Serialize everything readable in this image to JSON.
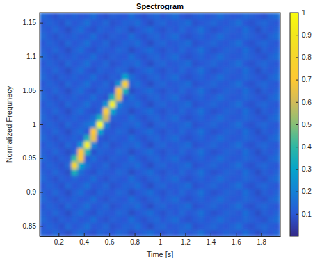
{
  "chart_data": {
    "type": "heatmap",
    "title": "Spectrogram",
    "x_label": "Time [s]",
    "y_label": "Normalized Frequnecy",
    "xlim": [
      0.05,
      1.95
    ],
    "ylim": [
      0.835,
      1.165
    ],
    "xticks": [
      0.2,
      0.4,
      0.6,
      0.8,
      1,
      1.2,
      1.4,
      1.6,
      1.8
    ],
    "yticks": [
      0.85,
      0.9,
      0.95,
      1,
      1.05,
      1.1,
      1.15
    ],
    "colorbar_range": [
      0,
      1
    ],
    "colorbar_ticks": [
      0.1,
      0.2,
      0.3,
      0.4,
      0.5,
      0.6,
      0.7,
      0.8,
      0.9,
      1
    ],
    "x": [
      0.075,
      0.125,
      0.175,
      0.225,
      0.275,
      0.325,
      0.375,
      0.425,
      0.475,
      0.525,
      0.575,
      0.625,
      0.675,
      0.725,
      0.775,
      0.825,
      0.875,
      0.925,
      0.975,
      1.025,
      1.075,
      1.125,
      1.175,
      1.225,
      1.275,
      1.325,
      1.375,
      1.425,
      1.475,
      1.525,
      1.575,
      1.625,
      1.675,
      1.725,
      1.775,
      1.825,
      1.875,
      1.925
    ],
    "y": [
      0.84,
      0.85,
      0.86,
      0.87,
      0.88,
      0.89,
      0.9,
      0.91,
      0.92,
      0.93,
      0.94,
      0.95,
      0.96,
      0.97,
      0.98,
      0.99,
      1,
      1.01,
      1.02,
      1.03,
      1.04,
      1.05,
      1.06,
      1.07,
      1.08,
      1.09,
      1.1,
      1.11,
      1.12,
      1.13,
      1.14,
      1.15,
      1.16
    ],
    "z": [
      [
        0.12,
        0.1,
        0.14,
        0.1,
        0.08,
        0.12,
        0.15,
        0.1,
        0.09,
        0.13,
        0.11,
        0.1,
        0.14,
        0.12,
        0.08,
        0.1,
        0.13,
        0.15,
        0.11,
        0.09,
        0.12,
        0.1,
        0.14,
        0.1,
        0.12,
        0.16,
        0.11,
        0.09,
        0.1,
        0.13,
        0.12,
        0.1,
        0.15,
        0.11,
        0.08,
        0.12,
        0.1,
        0.13
      ],
      [
        0.1,
        0.13,
        0.11,
        0.09,
        0.14,
        0.1,
        0.12,
        0.16,
        0.1,
        0.11,
        0.14,
        0.09,
        0.1,
        0.13,
        0.12,
        0.15,
        0.1,
        0.08,
        0.12,
        0.14,
        0.1,
        0.11,
        0.13,
        0.15,
        0.09,
        0.1,
        0.12,
        0.14,
        0.11,
        0.1,
        0.13,
        0.16,
        0.1,
        0.09,
        0.12,
        0.14,
        0.11,
        0.1
      ],
      [
        0.14,
        0.11,
        0.09,
        0.12,
        0.1,
        0.13,
        0.1,
        0.11,
        0.15,
        0.1,
        0.09,
        0.12,
        0.11,
        0.1,
        0.15,
        0.11,
        0.09,
        0.12,
        0.14,
        0.1,
        0.13,
        0.15,
        0.1,
        0.09,
        0.11,
        0.13,
        0.1,
        0.12,
        0.15,
        0.12,
        0.1,
        0.11,
        0.14,
        0.12,
        0.1,
        0.09,
        0.13,
        0.15
      ],
      [
        0.12,
        0.1,
        0.14,
        0.1,
        0.08,
        0.12,
        0.15,
        0.1,
        0.09,
        0.13,
        0.11,
        0.1,
        0.14,
        0.12,
        0.08,
        0.1,
        0.13,
        0.15,
        0.11,
        0.09,
        0.12,
        0.1,
        0.14,
        0.1,
        0.12,
        0.16,
        0.11,
        0.09,
        0.1,
        0.13,
        0.12,
        0.1,
        0.15,
        0.11,
        0.08,
        0.12,
        0.1,
        0.13
      ],
      [
        0.1,
        0.13,
        0.11,
        0.09,
        0.14,
        0.1,
        0.12,
        0.16,
        0.1,
        0.11,
        0.14,
        0.09,
        0.1,
        0.13,
        0.12,
        0.15,
        0.1,
        0.08,
        0.12,
        0.14,
        0.1,
        0.11,
        0.13,
        0.15,
        0.09,
        0.1,
        0.12,
        0.14,
        0.11,
        0.1,
        0.13,
        0.16,
        0.1,
        0.09,
        0.12,
        0.14,
        0.11,
        0.1
      ],
      [
        0.14,
        0.11,
        0.09,
        0.12,
        0.1,
        0.13,
        0.1,
        0.11,
        0.15,
        0.1,
        0.09,
        0.12,
        0.11,
        0.1,
        0.15,
        0.11,
        0.09,
        0.12,
        0.14,
        0.1,
        0.13,
        0.15,
        0.1,
        0.09,
        0.11,
        0.13,
        0.1,
        0.12,
        0.15,
        0.12,
        0.1,
        0.11,
        0.14,
        0.12,
        0.1,
        0.09,
        0.13,
        0.15
      ],
      [
        0.12,
        0.1,
        0.14,
        0.1,
        0.08,
        0.12,
        0.15,
        0.1,
        0.09,
        0.13,
        0.11,
        0.1,
        0.14,
        0.12,
        0.08,
        0.1,
        0.13,
        0.15,
        0.11,
        0.09,
        0.12,
        0.1,
        0.14,
        0.1,
        0.12,
        0.16,
        0.11,
        0.09,
        0.1,
        0.13,
        0.12,
        0.1,
        0.15,
        0.11,
        0.08,
        0.12,
        0.1,
        0.13
      ],
      [
        0.1,
        0.13,
        0.11,
        0.09,
        0.14,
        0.1,
        0.12,
        0.16,
        0.1,
        0.11,
        0.14,
        0.09,
        0.1,
        0.13,
        0.12,
        0.15,
        0.1,
        0.08,
        0.12,
        0.14,
        0.1,
        0.11,
        0.13,
        0.15,
        0.09,
        0.1,
        0.12,
        0.14,
        0.11,
        0.1,
        0.13,
        0.16,
        0.1,
        0.09,
        0.12,
        0.14,
        0.11,
        0.1
      ],
      [
        0.14,
        0.11,
        0.09,
        0.12,
        0.1,
        0.13,
        0.1,
        0.11,
        0.15,
        0.1,
        0.09,
        0.12,
        0.11,
        0.1,
        0.15,
        0.11,
        0.09,
        0.12,
        0.14,
        0.1,
        0.13,
        0.15,
        0.1,
        0.09,
        0.11,
        0.13,
        0.1,
        0.12,
        0.15,
        0.12,
        0.1,
        0.11,
        0.14,
        0.12,
        0.1,
        0.09,
        0.13,
        0.15
      ],
      [
        0.12,
        0.1,
        0.14,
        0.1,
        0.08,
        0.35,
        0.15,
        0.1,
        0.09,
        0.13,
        0.11,
        0.1,
        0.14,
        0.12,
        0.08,
        0.1,
        0.13,
        0.15,
        0.11,
        0.09,
        0.12,
        0.1,
        0.14,
        0.1,
        0.12,
        0.16,
        0.11,
        0.09,
        0.1,
        0.13,
        0.12,
        0.1,
        0.15,
        0.11,
        0.08,
        0.12,
        0.1,
        0.13
      ],
      [
        0.1,
        0.13,
        0.11,
        0.09,
        0.14,
        0.8,
        0.3,
        0.16,
        0.1,
        0.11,
        0.14,
        0.09,
        0.1,
        0.13,
        0.12,
        0.15,
        0.1,
        0.08,
        0.12,
        0.14,
        0.1,
        0.11,
        0.13,
        0.15,
        0.09,
        0.1,
        0.12,
        0.14,
        0.11,
        0.1,
        0.13,
        0.16,
        0.1,
        0.09,
        0.12,
        0.14,
        0.11,
        0.1
      ],
      [
        0.14,
        0.11,
        0.09,
        0.12,
        0.1,
        0.4,
        0.7,
        0.11,
        0.15,
        0.1,
        0.09,
        0.12,
        0.11,
        0.1,
        0.15,
        0.11,
        0.09,
        0.12,
        0.14,
        0.1,
        0.13,
        0.15,
        0.1,
        0.09,
        0.11,
        0.13,
        0.1,
        0.12,
        0.15,
        0.12,
        0.1,
        0.11,
        0.14,
        0.12,
        0.1,
        0.09,
        0.13,
        0.15
      ],
      [
        0.12,
        0.1,
        0.14,
        0.1,
        0.08,
        0.12,
        0.7,
        0.35,
        0.09,
        0.13,
        0.11,
        0.1,
        0.14,
        0.12,
        0.08,
        0.1,
        0.13,
        0.15,
        0.11,
        0.09,
        0.12,
        0.1,
        0.14,
        0.1,
        0.12,
        0.16,
        0.11,
        0.09,
        0.1,
        0.13,
        0.12,
        0.1,
        0.15,
        0.11,
        0.08,
        0.12,
        0.1,
        0.13
      ],
      [
        0.1,
        0.13,
        0.11,
        0.09,
        0.14,
        0.1,
        0.25,
        0.95,
        0.2,
        0.11,
        0.14,
        0.09,
        0.1,
        0.13,
        0.12,
        0.15,
        0.1,
        0.08,
        0.12,
        0.14,
        0.1,
        0.11,
        0.13,
        0.15,
        0.09,
        0.1,
        0.12,
        0.14,
        0.11,
        0.1,
        0.13,
        0.16,
        0.1,
        0.09,
        0.12,
        0.14,
        0.11,
        0.1
      ],
      [
        0.14,
        0.11,
        0.09,
        0.12,
        0.1,
        0.13,
        0.1,
        0.35,
        0.65,
        0.1,
        0.09,
        0.12,
        0.11,
        0.1,
        0.15,
        0.11,
        0.09,
        0.12,
        0.14,
        0.1,
        0.13,
        0.15,
        0.1,
        0.09,
        0.11,
        0.13,
        0.1,
        0.12,
        0.15,
        0.12,
        0.1,
        0.11,
        0.14,
        0.12,
        0.1,
        0.09,
        0.13,
        0.15
      ],
      [
        0.12,
        0.1,
        0.14,
        0.1,
        0.08,
        0.12,
        0.15,
        0.1,
        0.7,
        0.3,
        0.11,
        0.1,
        0.14,
        0.12,
        0.08,
        0.1,
        0.13,
        0.15,
        0.11,
        0.09,
        0.12,
        0.1,
        0.14,
        0.1,
        0.12,
        0.16,
        0.11,
        0.09,
        0.1,
        0.13,
        0.12,
        0.1,
        0.15,
        0.11,
        0.08,
        0.12,
        0.1,
        0.13
      ],
      [
        0.1,
        0.13,
        0.11,
        0.09,
        0.14,
        0.1,
        0.12,
        0.16,
        0.2,
        1,
        0.2,
        0.09,
        0.1,
        0.13,
        0.12,
        0.15,
        0.1,
        0.08,
        0.12,
        0.14,
        0.1,
        0.11,
        0.13,
        0.15,
        0.09,
        0.1,
        0.12,
        0.14,
        0.11,
        0.1,
        0.13,
        0.16,
        0.1,
        0.09,
        0.12,
        0.14,
        0.11,
        0.1
      ],
      [
        0.14,
        0.11,
        0.09,
        0.12,
        0.1,
        0.13,
        0.1,
        0.11,
        0.15,
        0.35,
        0.6,
        0.12,
        0.11,
        0.1,
        0.15,
        0.11,
        0.09,
        0.12,
        0.14,
        0.1,
        0.13,
        0.15,
        0.1,
        0.09,
        0.11,
        0.13,
        0.1,
        0.12,
        0.15,
        0.12,
        0.1,
        0.11,
        0.14,
        0.12,
        0.1,
        0.09,
        0.13,
        0.15
      ],
      [
        0.12,
        0.1,
        0.14,
        0.1,
        0.08,
        0.12,
        0.15,
        0.1,
        0.09,
        0.13,
        0.75,
        0.3,
        0.14,
        0.12,
        0.08,
        0.1,
        0.13,
        0.15,
        0.11,
        0.09,
        0.12,
        0.1,
        0.14,
        0.1,
        0.12,
        0.16,
        0.11,
        0.09,
        0.1,
        0.13,
        0.12,
        0.1,
        0.15,
        0.11,
        0.08,
        0.12,
        0.1,
        0.13
      ],
      [
        0.1,
        0.13,
        0.11,
        0.09,
        0.14,
        0.1,
        0.12,
        0.16,
        0.1,
        0.11,
        0.25,
        0.95,
        0.2,
        0.13,
        0.12,
        0.15,
        0.1,
        0.08,
        0.12,
        0.14,
        0.1,
        0.11,
        0.13,
        0.15,
        0.09,
        0.1,
        0.12,
        0.14,
        0.11,
        0.1,
        0.13,
        0.16,
        0.1,
        0.09,
        0.12,
        0.14,
        0.11,
        0.1
      ],
      [
        0.14,
        0.11,
        0.09,
        0.12,
        0.1,
        0.13,
        0.1,
        0.11,
        0.15,
        0.1,
        0.09,
        0.35,
        0.65,
        0.1,
        0.15,
        0.11,
        0.09,
        0.12,
        0.14,
        0.1,
        0.13,
        0.15,
        0.1,
        0.09,
        0.11,
        0.13,
        0.1,
        0.12,
        0.15,
        0.12,
        0.1,
        0.11,
        0.14,
        0.12,
        0.1,
        0.09,
        0.13,
        0.15
      ],
      [
        0.12,
        0.1,
        0.14,
        0.1,
        0.08,
        0.12,
        0.15,
        0.1,
        0.09,
        0.13,
        0.11,
        0.1,
        0.7,
        0.35,
        0.08,
        0.1,
        0.13,
        0.15,
        0.11,
        0.09,
        0.12,
        0.1,
        0.14,
        0.1,
        0.12,
        0.16,
        0.11,
        0.09,
        0.1,
        0.13,
        0.12,
        0.1,
        0.15,
        0.11,
        0.08,
        0.12,
        0.1,
        0.13
      ],
      [
        0.1,
        0.13,
        0.11,
        0.09,
        0.14,
        0.1,
        0.12,
        0.16,
        0.1,
        0.11,
        0.14,
        0.09,
        0.25,
        0.75,
        0.12,
        0.15,
        0.1,
        0.08,
        0.12,
        0.14,
        0.1,
        0.11,
        0.13,
        0.15,
        0.09,
        0.1,
        0.12,
        0.14,
        0.11,
        0.1,
        0.13,
        0.16,
        0.1,
        0.09,
        0.12,
        0.14,
        0.11,
        0.1
      ],
      [
        0.14,
        0.11,
        0.09,
        0.12,
        0.1,
        0.13,
        0.1,
        0.11,
        0.15,
        0.1,
        0.09,
        0.12,
        0.11,
        0.3,
        0.15,
        0.11,
        0.09,
        0.12,
        0.14,
        0.1,
        0.13,
        0.15,
        0.1,
        0.09,
        0.11,
        0.13,
        0.1,
        0.12,
        0.15,
        0.12,
        0.1,
        0.11,
        0.14,
        0.12,
        0.1,
        0.09,
        0.13,
        0.15
      ],
      [
        0.12,
        0.1,
        0.14,
        0.1,
        0.08,
        0.12,
        0.15,
        0.1,
        0.09,
        0.13,
        0.11,
        0.1,
        0.14,
        0.12,
        0.08,
        0.1,
        0.13,
        0.15,
        0.11,
        0.09,
        0.12,
        0.1,
        0.14,
        0.1,
        0.12,
        0.16,
        0.11,
        0.09,
        0.1,
        0.13,
        0.12,
        0.1,
        0.15,
        0.11,
        0.08,
        0.12,
        0.1,
        0.13
      ],
      [
        0.1,
        0.13,
        0.11,
        0.09,
        0.14,
        0.1,
        0.12,
        0.16,
        0.1,
        0.11,
        0.14,
        0.09,
        0.1,
        0.13,
        0.12,
        0.15,
        0.1,
        0.08,
        0.12,
        0.14,
        0.1,
        0.11,
        0.13,
        0.15,
        0.09,
        0.1,
        0.12,
        0.14,
        0.11,
        0.1,
        0.13,
        0.16,
        0.1,
        0.09,
        0.12,
        0.14,
        0.11,
        0.1
      ],
      [
        0.14,
        0.11,
        0.09,
        0.12,
        0.1,
        0.13,
        0.1,
        0.11,
        0.15,
        0.1,
        0.09,
        0.12,
        0.11,
        0.1,
        0.15,
        0.11,
        0.09,
        0.12,
        0.14,
        0.1,
        0.13,
        0.15,
        0.1,
        0.09,
        0.11,
        0.13,
        0.1,
        0.12,
        0.15,
        0.12,
        0.1,
        0.11,
        0.14,
        0.12,
        0.1,
        0.09,
        0.13,
        0.15
      ],
      [
        0.12,
        0.1,
        0.14,
        0.1,
        0.08,
        0.12,
        0.15,
        0.1,
        0.09,
        0.13,
        0.11,
        0.1,
        0.14,
        0.12,
        0.08,
        0.1,
        0.13,
        0.15,
        0.11,
        0.09,
        0.12,
        0.1,
        0.14,
        0.1,
        0.12,
        0.16,
        0.11,
        0.09,
        0.1,
        0.13,
        0.12,
        0.1,
        0.15,
        0.11,
        0.08,
        0.12,
        0.1,
        0.13
      ],
      [
        0.1,
        0.13,
        0.11,
        0.09,
        0.14,
        0.1,
        0.12,
        0.16,
        0.1,
        0.11,
        0.14,
        0.09,
        0.1,
        0.13,
        0.12,
        0.15,
        0.1,
        0.08,
        0.12,
        0.14,
        0.1,
        0.11,
        0.13,
        0.15,
        0.09,
        0.1,
        0.12,
        0.14,
        0.11,
        0.1,
        0.13,
        0.16,
        0.1,
        0.09,
        0.12,
        0.14,
        0.11,
        0.1
      ],
      [
        0.14,
        0.11,
        0.09,
        0.12,
        0.1,
        0.13,
        0.1,
        0.11,
        0.15,
        0.1,
        0.09,
        0.12,
        0.11,
        0.1,
        0.15,
        0.11,
        0.09,
        0.12,
        0.14,
        0.1,
        0.13,
        0.15,
        0.1,
        0.09,
        0.11,
        0.13,
        0.1,
        0.12,
        0.15,
        0.12,
        0.1,
        0.11,
        0.14,
        0.12,
        0.1,
        0.09,
        0.13,
        0.15
      ],
      [
        0.12,
        0.1,
        0.14,
        0.1,
        0.08,
        0.12,
        0.15,
        0.1,
        0.09,
        0.13,
        0.11,
        0.1,
        0.14,
        0.12,
        0.08,
        0.1,
        0.13,
        0.15,
        0.11,
        0.09,
        0.12,
        0.1,
        0.14,
        0.1,
        0.12,
        0.16,
        0.11,
        0.09,
        0.1,
        0.13,
        0.12,
        0.1,
        0.15,
        0.11,
        0.08,
        0.12,
        0.1,
        0.13
      ],
      [
        0.1,
        0.13,
        0.11,
        0.09,
        0.14,
        0.1,
        0.12,
        0.16,
        0.1,
        0.11,
        0.14,
        0.09,
        0.1,
        0.13,
        0.12,
        0.15,
        0.1,
        0.08,
        0.12,
        0.14,
        0.1,
        0.11,
        0.13,
        0.15,
        0.09,
        0.1,
        0.12,
        0.14,
        0.11,
        0.1,
        0.13,
        0.16,
        0.1,
        0.09,
        0.12,
        0.14,
        0.11,
        0.1
      ],
      [
        0.14,
        0.11,
        0.09,
        0.12,
        0.1,
        0.13,
        0.1,
        0.11,
        0.15,
        0.1,
        0.09,
        0.12,
        0.11,
        0.1,
        0.15,
        0.11,
        0.09,
        0.12,
        0.14,
        0.1,
        0.13,
        0.15,
        0.1,
        0.09,
        0.11,
        0.13,
        0.1,
        0.12,
        0.15,
        0.12,
        0.1,
        0.11,
        0.14,
        0.12,
        0.1,
        0.09,
        0.13,
        0.15
      ]
    ]
  }
}
